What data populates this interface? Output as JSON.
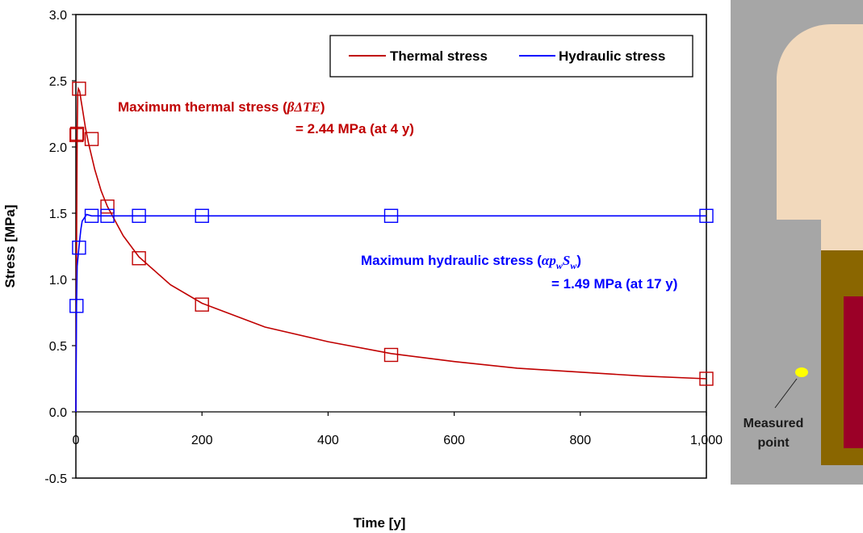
{
  "chart_data": {
    "type": "line",
    "title": "",
    "xlabel": "Time [y]",
    "ylabel": "Stress [MPa]",
    "xlim": [
      0,
      1000
    ],
    "ylim": [
      -0.5,
      3.0
    ],
    "x_ticks": [
      0,
      200,
      400,
      600,
      800,
      1000
    ],
    "x_tick_labels": [
      "0",
      "200",
      "400",
      "600",
      "800",
      "1,000"
    ],
    "y_ticks": [
      -0.5,
      0.0,
      0.5,
      1.0,
      1.5,
      2.0,
      2.5,
      3.0
    ],
    "y_tick_labels": [
      "-0.5",
      "0.0",
      "0.5",
      "1.0",
      "1.5",
      "2.0",
      "2.5",
      "3.0"
    ],
    "grid": false,
    "legend_position": "top-right",
    "series": [
      {
        "name": "Thermal stress",
        "color": "#c00000",
        "line_x": [
          0,
          1,
          2,
          3,
          4,
          6,
          8,
          10,
          15,
          20,
          30,
          40,
          50,
          75,
          100,
          150,
          200,
          300,
          400,
          500,
          600,
          700,
          800,
          900,
          1000
        ],
        "line_y": [
          0.0,
          1.2,
          2.1,
          2.4,
          2.44,
          2.42,
          2.36,
          2.3,
          2.15,
          2.03,
          1.83,
          1.67,
          1.55,
          1.33,
          1.17,
          0.96,
          0.82,
          0.64,
          0.53,
          0.44,
          0.38,
          0.33,
          0.3,
          0.27,
          0.25
        ],
        "markers_x": [
          1,
          2,
          5,
          25,
          50,
          100,
          200,
          500,
          1000
        ],
        "markers_y": [
          2.09,
          2.1,
          2.44,
          2.06,
          1.55,
          1.16,
          0.81,
          0.43,
          0.25
        ]
      },
      {
        "name": "Hydraulic stress",
        "color": "#0000ff",
        "line_x": [
          0,
          1,
          2,
          5,
          8,
          10,
          17,
          25,
          50,
          100,
          200,
          500,
          1000
        ],
        "line_y": [
          0.0,
          0.8,
          1.1,
          1.25,
          1.38,
          1.44,
          1.49,
          1.48,
          1.48,
          1.48,
          1.48,
          1.48,
          1.48
        ],
        "markers_x": [
          1,
          5,
          25,
          50,
          100,
          200,
          500,
          1000
        ],
        "markers_y": [
          0.8,
          1.24,
          1.48,
          1.48,
          1.48,
          1.48,
          1.48,
          1.48
        ]
      }
    ],
    "annotations": [
      {
        "series": "Thermal stress",
        "line1_prefix": "Maximum thermal stress (",
        "line1_symbol": "βΔTE",
        "line1_suffix": ")",
        "line2": "= 2.44 MPa (at 4 y)"
      },
      {
        "series": "Hydraulic stress",
        "line1_prefix": "Maximum hydraulic stress (",
        "line1_symbol": "αp",
        "line1_sub1": "w",
        "line1_symbol2": "S",
        "line1_sub2": "w",
        "line1_suffix": ")",
        "line2": "= 1.49 MPa (at 17 y)"
      }
    ]
  },
  "diagram": {
    "label_line1": "Measured",
    "label_line2": "point",
    "colors": {
      "background": "#a6a6a6",
      "upper_block": "#f2d9bc",
      "buffer": "#8a6600",
      "canister": "#9b0027",
      "point": "#ffff00"
    }
  }
}
